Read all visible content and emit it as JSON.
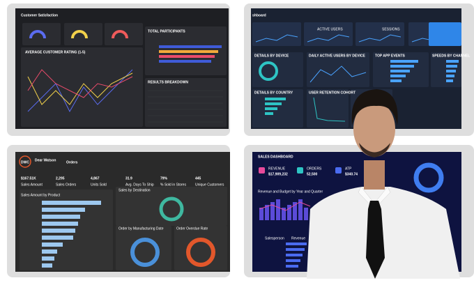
{
  "panels": {
    "customer_satisfaction": {
      "title": "Customer Satisfaction",
      "rating_title": "AVERAGE CUSTOMER RATING (1-5)",
      "participants_title": "TOTAL PARTICIPANTS",
      "results_title": "RESULTS BREAKDOWN"
    },
    "analytics": {
      "title": "shboard",
      "cards": [
        "ACTIVE USERS",
        "SESSIONS"
      ],
      "sections": [
        "DETAILS BY DEVICE",
        "DAILY ACTIVE USERS BY DEVICE",
        "TOP APP EVENTS",
        "SPEEDS BY CHANNEL",
        "DETAILS BY COUNTRY",
        "USER RETENTION COHORT"
      ]
    },
    "orders": {
      "logo": "DWC",
      "brand": "Dear Watson",
      "title": "Orders",
      "kpis": [
        {
          "value": "$167.51K",
          "label": "Sales Amount"
        },
        {
          "value": "2,295",
          "label": "Sales Orders"
        },
        {
          "value": "4,867",
          "label": "Units Sold"
        },
        {
          "value": "31.9",
          "label": "Avg. Days To Ship"
        },
        {
          "value": "79%",
          "label": "% Sold in Stores"
        },
        {
          "value": "445",
          "label": "Unique Customers"
        }
      ],
      "sections": [
        "Sales Amount by Product",
        "Sales by Destination",
        "Order by Manufacturing Date",
        "Order Overdue Rate"
      ]
    },
    "sales": {
      "title": "SALES DASHBOARD",
      "kpis": [
        {
          "label": "REVENUE",
          "value": "$17,909,232"
        },
        {
          "label": "ORDERS",
          "value": "52,500"
        },
        {
          "label": "ATP",
          "value": "$340.74"
        }
      ],
      "chart_title": "Revenue and Budget by Year and Quarter",
      "table_headers": [
        "Salesperson",
        "Revenue"
      ]
    }
  }
}
